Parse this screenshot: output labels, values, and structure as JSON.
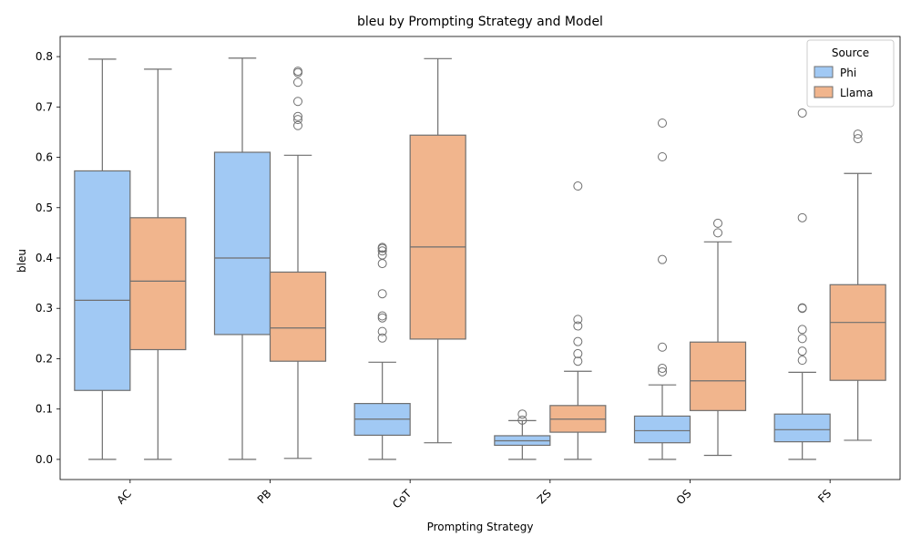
{
  "chart_data": {
    "type": "box",
    "title": "bleu by Prompting Strategy and Model",
    "xlabel": "Prompting Strategy",
    "ylabel": "bleu",
    "ylim": [
      -0.04,
      0.84
    ],
    "yticks": [
      0.0,
      0.1,
      0.2,
      0.3,
      0.4,
      0.5,
      0.6,
      0.7,
      0.8
    ],
    "ytick_labels": [
      "0.0",
      "0.1",
      "0.2",
      "0.3",
      "0.4",
      "0.5",
      "0.6",
      "0.7",
      "0.8"
    ],
    "categories": [
      "AC",
      "PB",
      "CoT",
      "ZS",
      "OS",
      "FS"
    ],
    "legend": {
      "title": "Source",
      "placement": "top-right"
    },
    "grid": false,
    "series": [
      {
        "name": "Phi",
        "color": "#a1c9f4",
        "boxes": [
          {
            "whisker_low": 0.0,
            "q1": 0.137,
            "median": 0.316,
            "q3": 0.573,
            "whisker_high": 0.795,
            "outliers": []
          },
          {
            "whisker_low": 0.0,
            "q1": 0.248,
            "median": 0.4,
            "q3": 0.61,
            "whisker_high": 0.797,
            "outliers": []
          },
          {
            "whisker_low": 0.0,
            "q1": 0.048,
            "median": 0.08,
            "q3": 0.111,
            "whisker_high": 0.193,
            "outliers": [
              0.241,
              0.254,
              0.281,
              0.285,
              0.329,
              0.389,
              0.406,
              0.414,
              0.419,
              0.421
            ]
          },
          {
            "whisker_low": 0.0,
            "q1": 0.028,
            "median": 0.037,
            "q3": 0.047,
            "whisker_high": 0.077,
            "outliers": [
              0.078,
              0.09
            ]
          },
          {
            "whisker_low": 0.0,
            "q1": 0.033,
            "median": 0.057,
            "q3": 0.086,
            "whisker_high": 0.148,
            "outliers": [
              0.174,
              0.181,
              0.223,
              0.397,
              0.601,
              0.668
            ]
          },
          {
            "whisker_low": 0.0,
            "q1": 0.035,
            "median": 0.059,
            "q3": 0.09,
            "whisker_high": 0.173,
            "outliers": [
              0.197,
              0.215,
              0.24,
              0.258,
              0.3,
              0.301,
              0.48,
              0.688
            ]
          }
        ]
      },
      {
        "name": "Llama",
        "color": "#f1b58d",
        "boxes": [
          {
            "whisker_low": 0.0,
            "q1": 0.218,
            "median": 0.354,
            "q3": 0.48,
            "whisker_high": 0.775,
            "outliers": []
          },
          {
            "whisker_low": 0.002,
            "q1": 0.195,
            "median": 0.261,
            "q3": 0.372,
            "whisker_high": 0.604,
            "outliers": [
              0.663,
              0.675,
              0.681,
              0.711,
              0.749,
              0.768,
              0.771
            ]
          },
          {
            "whisker_low": 0.033,
            "q1": 0.239,
            "median": 0.422,
            "q3": 0.644,
            "whisker_high": 0.796,
            "outliers": []
          },
          {
            "whisker_low": 0.0,
            "q1": 0.054,
            "median": 0.08,
            "q3": 0.107,
            "whisker_high": 0.175,
            "outliers": [
              0.195,
              0.21,
              0.234,
              0.265,
              0.278,
              0.543
            ]
          },
          {
            "whisker_low": 0.008,
            "q1": 0.097,
            "median": 0.156,
            "q3": 0.233,
            "whisker_high": 0.432,
            "outliers": [
              0.45,
              0.469
            ]
          },
          {
            "whisker_low": 0.038,
            "q1": 0.157,
            "median": 0.272,
            "q3": 0.347,
            "whisker_high": 0.568,
            "outliers": [
              0.637,
              0.646
            ]
          }
        ]
      }
    ]
  }
}
